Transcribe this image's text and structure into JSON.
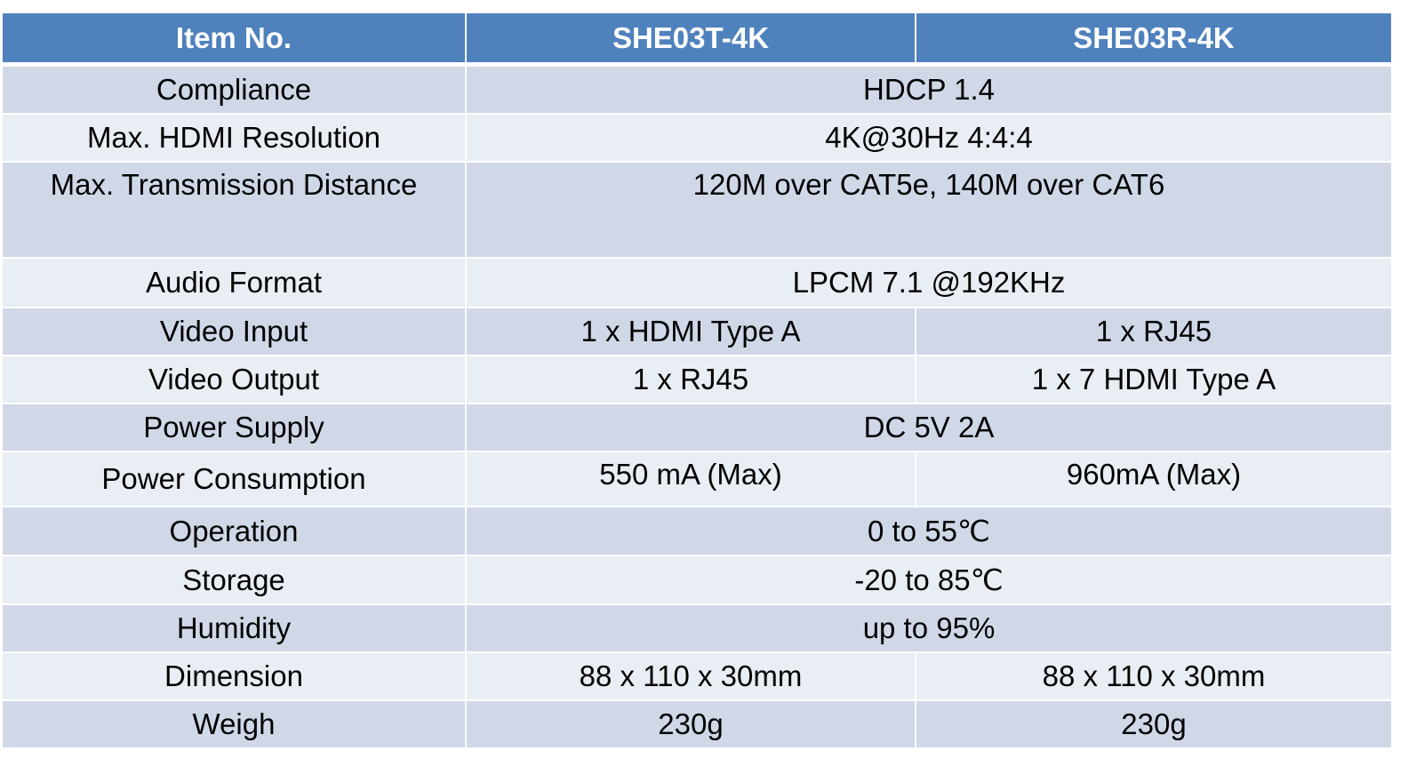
{
  "table": {
    "header": [
      "Item No.",
      "SHE03T-4K",
      "SHE03R-4K"
    ],
    "rows": [
      [
        "Compliance",
        "HDCP 1.4"
      ],
      [
        "Max. HDMI Resolution",
        "4K@30Hz 4:4:4"
      ],
      [
        "Max. Transmission Distance",
        "120M over CAT5e, 140M over CAT6"
      ],
      [
        "Audio Format",
        "LPCM 7.1 @192KHz"
      ],
      [
        "Video Input",
        "1 x HDMI Type A",
        "1 x RJ45"
      ],
      [
        "Video Output",
        "1 x RJ45",
        "1 x 7 HDMI Type A"
      ],
      [
        "Power Supply",
        "DC 5V 2A"
      ],
      [
        "Power Consumption",
        "550 mA (Max)",
        "960mA (Max)"
      ],
      [
        "Operation",
        "0 to 55℃"
      ],
      [
        "Storage",
        "-20 to 85℃"
      ],
      [
        "Humidity",
        "up to 95%"
      ],
      [
        "Dimension",
        "88 x 110 x 30mm",
        "88 x 110 x 30mm"
      ],
      [
        "Weigh",
        "230g",
        "230g"
      ]
    ]
  }
}
